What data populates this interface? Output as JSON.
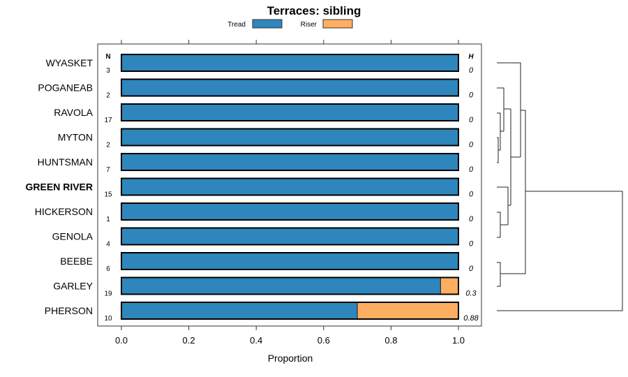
{
  "chart_data": {
    "type": "bar",
    "orientation": "horizontal",
    "stacked": true,
    "title": "Terraces: sibling",
    "xlabel": "Proportion",
    "xlim": [
      0,
      1
    ],
    "xticks": [
      "0.0",
      "0.2",
      "0.4",
      "0.6",
      "0.8",
      "1.0"
    ],
    "legend": {
      "placement": "top",
      "entries": [
        "Tread",
        "Riser"
      ]
    },
    "colors": {
      "Tread": "#2e86bc",
      "Riser": "#fdae61"
    },
    "n_header": "N",
    "h_header": "H",
    "categories": [
      "WYASKET",
      "POGANEAB",
      "RAVOLA",
      "MYTON",
      "HUNTSMAN",
      "GREEN RIVER",
      "HICKERSON",
      "GENOLA",
      "BEEBE",
      "GARLEY",
      "PHERSON"
    ],
    "highlight": "GREEN RIVER",
    "n": [
      "3",
      "2",
      "17",
      "2",
      "7",
      "15",
      "1",
      "4",
      "6",
      "19",
      "10"
    ],
    "h": [
      "0",
      "0",
      "0",
      "0",
      "0",
      "0",
      "0",
      "0",
      "0",
      "0.3",
      "0.88"
    ],
    "series": [
      {
        "name": "Tread",
        "values": [
          1,
          1,
          1,
          1,
          1,
          1,
          1,
          1,
          1,
          0.947,
          0.7
        ]
      },
      {
        "name": "Riser",
        "values": [
          0,
          0,
          0,
          0,
          0,
          0,
          0,
          0,
          0,
          0.053,
          0.3
        ]
      }
    ]
  }
}
